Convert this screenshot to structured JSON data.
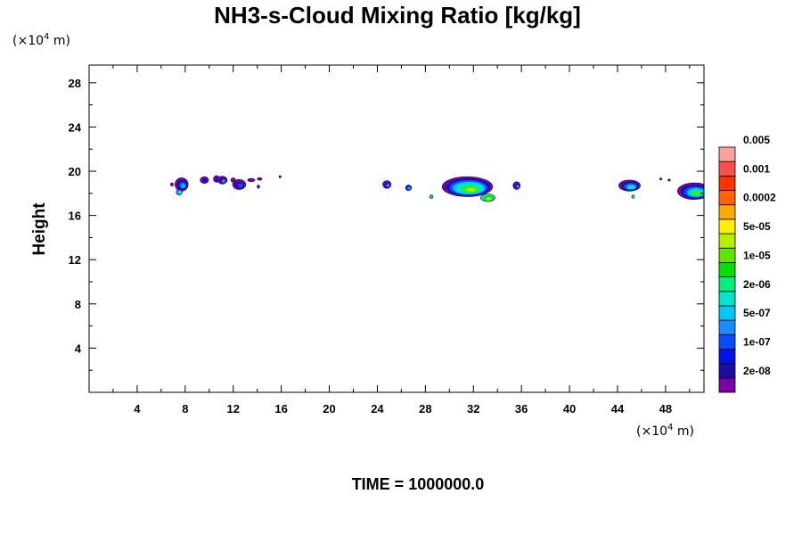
{
  "chart_data": {
    "type": "heatmap",
    "title": "NH3-s-Cloud Mixing Ratio [kg/kg]",
    "ylabel": "Height",
    "x_unit": {
      "prefix": "(×10",
      "exp": "4",
      "suffix": " m)"
    },
    "y_unit": {
      "prefix": "(×10",
      "exp": "4",
      "suffix": " m)"
    },
    "xlim": [
      0,
      51.2
    ],
    "ylim": [
      0,
      29.6
    ],
    "x_ticks": [
      4,
      8,
      12,
      16,
      20,
      24,
      28,
      32,
      36,
      40,
      44,
      48
    ],
    "y_ticks": [
      4,
      8,
      12,
      16,
      20,
      24,
      28
    ],
    "time_label": "TIME = 1000000.0",
    "colorbar": {
      "colors": [
        "#7b00a8",
        "#1a0ba3",
        "#0014e6",
        "#0a4cff",
        "#1a8cff",
        "#00c8ff",
        "#00e6c8",
        "#00ee7a",
        "#00e000",
        "#5ee600",
        "#b4f000",
        "#ffee00",
        "#ffaa00",
        "#ff6400",
        "#ff3200",
        "#ff5050",
        "#ffa0a0"
      ],
      "labels": [
        "2e-08",
        "1e-07",
        "5e-07",
        "2e-06",
        "1e-05",
        "5e-05",
        "0.0002",
        "0.001",
        "0.005"
      ]
    },
    "cloud_patches": [
      {
        "x": 7.7,
        "y": 18.8,
        "rx": 0.55,
        "ry": 0.6,
        "levels": [
          0,
          1,
          3,
          5
        ]
      },
      {
        "x": 7.5,
        "y": 18.1,
        "rx": 0.25,
        "ry": 0.25,
        "levels": [
          4,
          6
        ]
      },
      {
        "x": 6.9,
        "y": 18.8,
        "rx": 0.12,
        "ry": 0.15,
        "levels": [
          0
        ]
      },
      {
        "x": 9.6,
        "y": 19.2,
        "rx": 0.35,
        "ry": 0.3,
        "levels": [
          0,
          2
        ]
      },
      {
        "x": 10.6,
        "y": 19.3,
        "rx": 0.25,
        "ry": 0.3,
        "levels": [
          0,
          2
        ]
      },
      {
        "x": 11.1,
        "y": 19.2,
        "rx": 0.4,
        "ry": 0.35,
        "levels": [
          0,
          1,
          4
        ]
      },
      {
        "x": 12.5,
        "y": 18.8,
        "rx": 0.55,
        "ry": 0.45,
        "levels": [
          0,
          1,
          3
        ]
      },
      {
        "x": 12.0,
        "y": 19.2,
        "rx": 0.2,
        "ry": 0.2,
        "levels": [
          0
        ]
      },
      {
        "x": 13.5,
        "y": 19.2,
        "rx": 0.3,
        "ry": 0.15,
        "levels": [
          0
        ]
      },
      {
        "x": 14.2,
        "y": 19.3,
        "rx": 0.2,
        "ry": 0.12,
        "levels": [
          0
        ]
      },
      {
        "x": 14.1,
        "y": 18.6,
        "rx": 0.12,
        "ry": 0.15,
        "levels": [
          0,
          3
        ]
      },
      {
        "x": 15.9,
        "y": 19.5,
        "rx": 0.06,
        "ry": 0.1,
        "levels": [
          0
        ]
      },
      {
        "x": 24.8,
        "y": 18.8,
        "rx": 0.35,
        "ry": 0.35,
        "levels": [
          0,
          2,
          4
        ]
      },
      {
        "x": 26.6,
        "y": 18.5,
        "rx": 0.25,
        "ry": 0.25,
        "levels": [
          2,
          4
        ]
      },
      {
        "x": 28.5,
        "y": 17.7,
        "rx": 0.15,
        "ry": 0.15,
        "levels": [
          7,
          8
        ]
      },
      {
        "x": 31.5,
        "y": 18.6,
        "rx": 2.1,
        "ry": 0.9,
        "levels": [
          0,
          1,
          3,
          5,
          6,
          7,
          9,
          10
        ]
      },
      {
        "x": 33.2,
        "y": 17.6,
        "rx": 0.6,
        "ry": 0.35,
        "levels": [
          6,
          8,
          10
        ]
      },
      {
        "x": 35.6,
        "y": 18.7,
        "rx": 0.3,
        "ry": 0.35,
        "levels": [
          0,
          2,
          4
        ]
      },
      {
        "x": 45.0,
        "y": 18.7,
        "rx": 0.9,
        "ry": 0.5,
        "levels": [
          0,
          1,
          3,
          5,
          7
        ]
      },
      {
        "x": 45.3,
        "y": 17.7,
        "rx": 0.12,
        "ry": 0.15,
        "levels": [
          6
        ]
      },
      {
        "x": 47.6,
        "y": 19.3,
        "rx": 0.08,
        "ry": 0.08,
        "levels": [
          0
        ]
      },
      {
        "x": 48.3,
        "y": 19.2,
        "rx": 0.1,
        "ry": 0.08,
        "levels": [
          0
        ]
      },
      {
        "x": 50.4,
        "y": 18.2,
        "rx": 1.4,
        "ry": 0.75,
        "levels": [
          0,
          1,
          3,
          5,
          7,
          9
        ]
      }
    ]
  }
}
